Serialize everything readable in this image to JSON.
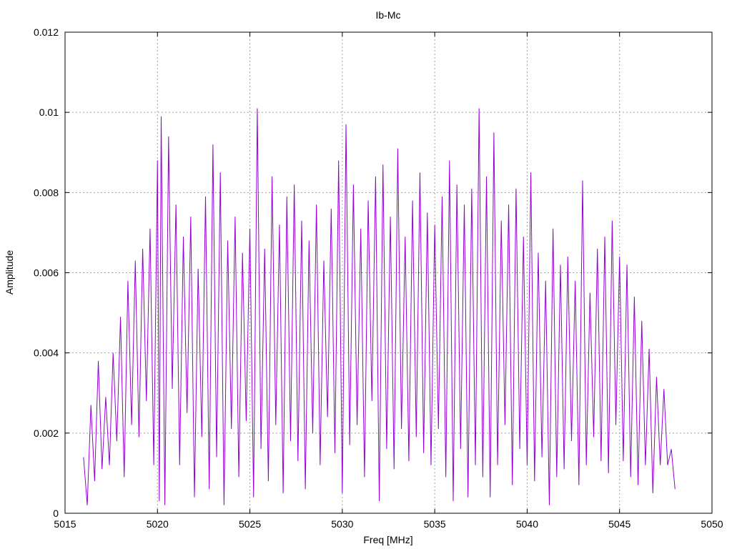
{
  "chart_data": {
    "type": "line",
    "title": "Ib-Mc",
    "xlabel": "Freq [MHz]",
    "ylabel": "Amplitude",
    "xlim": [
      5015,
      5050
    ],
    "ylim": [
      0,
      0.012
    ],
    "xticks": [
      "5015",
      "5020",
      "5025",
      "5030",
      "5035",
      "5040",
      "5045",
      "5050"
    ],
    "yticks": [
      "0",
      "0.002",
      "0.004",
      "0.006",
      "0.008",
      "0.01",
      "0.012"
    ],
    "grid": true,
    "series_color": "#9400d3",
    "series": [
      {
        "x": [
          5016.0,
          5016.2,
          5016.4,
          5016.6,
          5016.8,
          5017.0,
          5017.2,
          5017.4,
          5017.6,
          5017.8,
          5018.0,
          5018.2,
          5018.4,
          5018.6,
          5018.8,
          5019.0,
          5019.2,
          5019.4,
          5019.6,
          5019.8,
          5020.0,
          5020.1,
          5020.2,
          5020.4,
          5020.6,
          5020.8,
          5021.0,
          5021.2,
          5021.4,
          5021.6,
          5021.8,
          5022.0,
          5022.2,
          5022.4,
          5022.6,
          5022.8,
          5023.0,
          5023.2,
          5023.4,
          5023.6,
          5023.8,
          5024.0,
          5024.2,
          5024.4,
          5024.6,
          5024.8,
          5025.0,
          5025.2,
          5025.4,
          5025.6,
          5025.8,
          5026.0,
          5026.2,
          5026.4,
          5026.6,
          5026.8,
          5027.0,
          5027.2,
          5027.4,
          5027.6,
          5027.8,
          5028.0,
          5028.2,
          5028.4,
          5028.6,
          5028.8,
          5029.0,
          5029.2,
          5029.4,
          5029.6,
          5029.8,
          5030.0,
          5030.2,
          5030.4,
          5030.6,
          5030.8,
          5031.0,
          5031.2,
          5031.4,
          5031.6,
          5031.8,
          5032.0,
          5032.2,
          5032.4,
          5032.6,
          5032.8,
          5033.0,
          5033.2,
          5033.4,
          5033.6,
          5033.8,
          5034.0,
          5034.2,
          5034.4,
          5034.6,
          5034.8,
          5035.0,
          5035.2,
          5035.4,
          5035.6,
          5035.8,
          5036.0,
          5036.2,
          5036.4,
          5036.6,
          5036.8,
          5037.0,
          5037.2,
          5037.4,
          5037.6,
          5037.8,
          5038.0,
          5038.2,
          5038.4,
          5038.6,
          5038.8,
          5039.0,
          5039.2,
          5039.4,
          5039.6,
          5039.8,
          5040.0,
          5040.2,
          5040.4,
          5040.6,
          5040.8,
          5041.0,
          5041.2,
          5041.4,
          5041.6,
          5041.8,
          5042.0,
          5042.2,
          5042.4,
          5042.6,
          5042.8,
          5043.0,
          5043.2,
          5043.4,
          5043.6,
          5043.8,
          5044.0,
          5044.2,
          5044.4,
          5044.6,
          5044.8,
          5045.0,
          5045.2,
          5045.4,
          5045.6,
          5045.8,
          5046.0,
          5046.2,
          5046.4,
          5046.6,
          5046.8,
          5047.0,
          5047.2,
          5047.4,
          5047.6,
          5047.8,
          5048.0
        ],
        "y": [
          0.0014,
          0.0002,
          0.0027,
          0.0008,
          0.0038,
          0.0011,
          0.0029,
          0.0012,
          0.004,
          0.0018,
          0.0049,
          0.0009,
          0.0058,
          0.0022,
          0.0063,
          0.0019,
          0.0066,
          0.0028,
          0.0071,
          0.0012,
          0.0088,
          0.0003,
          0.0099,
          0.0002,
          0.0094,
          0.0031,
          0.0077,
          0.0012,
          0.0069,
          0.0025,
          0.0074,
          0.0004,
          0.0061,
          0.0019,
          0.0079,
          0.0006,
          0.0092,
          0.0014,
          0.0085,
          0.0002,
          0.0068,
          0.0021,
          0.0074,
          0.0009,
          0.0065,
          0.0023,
          0.0071,
          0.0004,
          0.0101,
          0.0016,
          0.0066,
          0.0008,
          0.0084,
          0.0022,
          0.0072,
          0.0005,
          0.0079,
          0.0018,
          0.0082,
          0.0013,
          0.0073,
          0.0006,
          0.0068,
          0.002,
          0.0077,
          0.0012,
          0.0063,
          0.0024,
          0.0076,
          0.0015,
          0.0088,
          0.0005,
          0.0097,
          0.0017,
          0.0082,
          0.0022,
          0.0071,
          0.0009,
          0.0078,
          0.0028,
          0.0084,
          0.0003,
          0.0087,
          0.0016,
          0.0074,
          0.0011,
          0.0091,
          0.0021,
          0.0069,
          0.0013,
          0.0078,
          0.0019,
          0.0085,
          0.0015,
          0.0075,
          0.0012,
          0.0072,
          0.0021,
          0.0079,
          0.0009,
          0.0088,
          0.0003,
          0.0082,
          0.0016,
          0.0077,
          0.0004,
          0.0081,
          0.0012,
          0.0101,
          0.0009,
          0.0084,
          0.0004,
          0.0095,
          0.0012,
          0.0073,
          0.0022,
          0.0077,
          0.0007,
          0.0081,
          0.0016,
          0.0069,
          0.0012,
          0.0085,
          0.0008,
          0.0065,
          0.0014,
          0.0058,
          0.0002,
          0.0071,
          0.0009,
          0.0062,
          0.0011,
          0.0064,
          0.0018,
          0.0058,
          0.0007,
          0.0083,
          0.0012,
          0.0055,
          0.0019,
          0.0066,
          0.0013,
          0.0069,
          0.001,
          0.0073,
          0.0022,
          0.0064,
          0.0013,
          0.0062,
          0.0009,
          0.0054,
          0.0007,
          0.0048,
          0.0012,
          0.0041,
          0.0005,
          0.0034,
          0.0012,
          0.0031,
          0.0012,
          0.0016,
          0.0006
        ]
      }
    ]
  }
}
